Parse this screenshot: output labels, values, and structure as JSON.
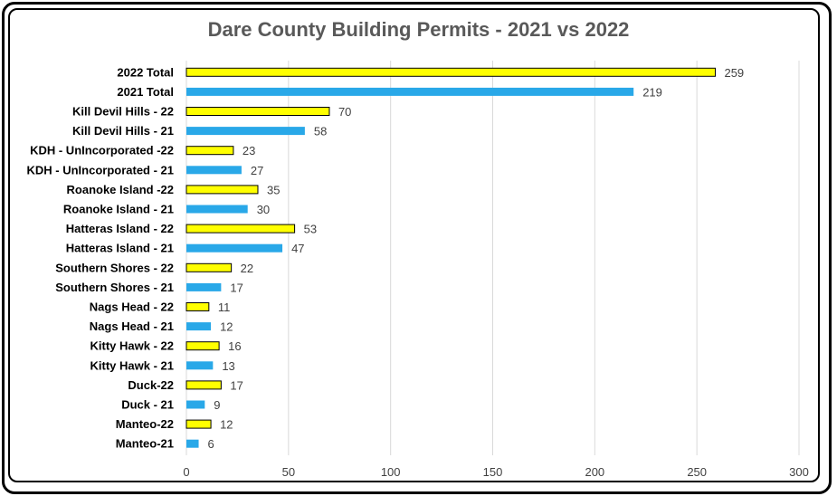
{
  "chart_data": {
    "type": "bar",
    "orientation": "horizontal",
    "title": "Dare County Building Permits - 2021 vs 2022",
    "xlabel": "",
    "ylabel": "",
    "xlim": [
      0,
      300
    ],
    "x_ticks": [
      0,
      50,
      100,
      150,
      200,
      250,
      300
    ],
    "grid": true,
    "categories": [
      "2022 Total",
      "2021 Total",
      "Kill Devil Hills - 22",
      "Kill Devil Hills - 21",
      "KDH - UnIncorporated -22",
      "KDH - UnIncorporated - 21",
      "Roanoke Island -22",
      "Roanoke Island - 21",
      "Hatteras Island - 22",
      "Hatteras Island - 21",
      "Southern Shores - 22",
      "Southern Shores - 21",
      "Nags Head - 22",
      "Nags Head - 21",
      "Kitty Hawk - 22",
      "Kitty Hawk - 21",
      "Duck-22",
      "Duck - 21",
      "Manteo-22",
      "Manteo-21"
    ],
    "values": [
      259,
      219,
      70,
      58,
      23,
      27,
      35,
      30,
      53,
      47,
      22,
      17,
      11,
      12,
      16,
      13,
      17,
      9,
      12,
      6
    ],
    "bar_colors": {
      "2022": "#ffff00",
      "2021": "#29a8e8"
    },
    "bar_year_by_category": [
      "2022",
      "2021",
      "2022",
      "2021",
      "2022",
      "2021",
      "2022",
      "2021",
      "2022",
      "2021",
      "2022",
      "2021",
      "2022",
      "2021",
      "2022",
      "2021",
      "2022",
      "2021",
      "2022",
      "2021"
    ]
  }
}
